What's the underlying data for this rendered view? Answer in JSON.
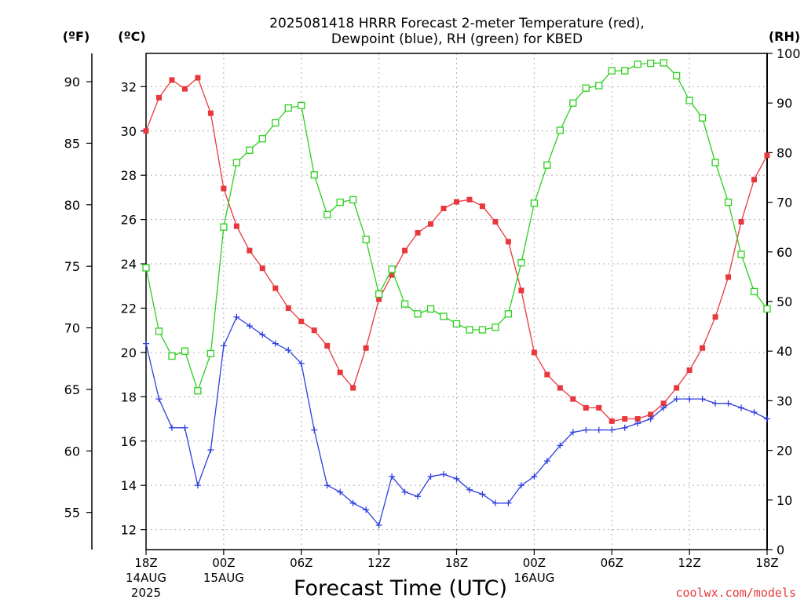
{
  "chart_data": {
    "type": "line",
    "title_line1": "2025081418 HRRR Forecast 2-meter Temperature (red),",
    "title_line2": "Dewpoint (blue), RH (green) for KBED",
    "left_unit_f": "(ºF)",
    "left_unit_c": "(ºC)",
    "right_unit": "(RH)",
    "xlabel": "Forecast Time (UTC)",
    "credit": "coolwx.com/models",
    "x_tick_labels": [
      {
        "hour": 0,
        "label": "18Z",
        "sub1": "14AUG",
        "sub2": "2025"
      },
      {
        "hour": 6,
        "label": "00Z",
        "sub1": "15AUG",
        "sub2": ""
      },
      {
        "hour": 12,
        "label": "06Z",
        "sub1": "",
        "sub2": ""
      },
      {
        "hour": 18,
        "label": "12Z",
        "sub1": "",
        "sub2": ""
      },
      {
        "hour": 24,
        "label": "18Z",
        "sub1": "",
        "sub2": ""
      },
      {
        "hour": 30,
        "label": "00Z",
        "sub1": "16AUG",
        "sub2": ""
      },
      {
        "hour": 36,
        "label": "06Z",
        "sub1": "",
        "sub2": ""
      },
      {
        "hour": 42,
        "label": "12Z",
        "sub1": "",
        "sub2": ""
      },
      {
        "hour": 48,
        "label": "18Z",
        "sub1": "",
        "sub2": ""
      }
    ],
    "xlim_hours": [
      0,
      48
    ],
    "ylim_c": [
      11.1,
      33.5
    ],
    "ylim_rh": [
      0,
      100
    ],
    "yticks_c": [
      12,
      14,
      16,
      18,
      20,
      22,
      24,
      26,
      28,
      30,
      32
    ],
    "yticks_f": [
      55,
      60,
      65,
      70,
      75,
      80,
      85,
      90
    ],
    "yticks_rh": [
      0,
      10,
      20,
      30,
      40,
      50,
      60,
      70,
      80,
      90,
      100
    ],
    "grid": true,
    "colors": {
      "temperature": "#e8383d",
      "dewpoint": "#2f3fe0",
      "rh": "#2ccf1f",
      "grid": "#b0b0b0"
    },
    "series": [
      {
        "name": "Temperature",
        "key": "temperature",
        "unit": "C",
        "marker": "filled-square",
        "values": [
          30.0,
          31.5,
          32.3,
          31.9,
          32.4,
          30.8,
          27.4,
          25.7,
          24.6,
          23.8,
          22.9,
          22.0,
          21.4,
          21.0,
          20.3,
          19.1,
          18.4,
          20.2,
          22.4,
          23.5,
          24.6,
          25.4,
          25.8,
          26.5,
          26.8,
          26.9,
          26.6,
          25.9,
          25.0,
          22.8,
          20.0,
          19.0,
          18.4,
          17.9,
          17.5,
          17.5,
          16.9,
          17.0,
          17.0,
          17.2,
          17.7,
          18.4,
          19.2,
          20.2,
          21.6,
          23.4,
          25.9,
          27.8,
          28.9
        ]
      },
      {
        "name": "Dewpoint",
        "key": "dewpoint",
        "unit": "C",
        "marker": "plus",
        "values": [
          20.4,
          17.9,
          16.6,
          16.6,
          14.0,
          15.6,
          20.3,
          21.6,
          21.2,
          20.8,
          20.4,
          20.1,
          19.5,
          16.5,
          14.0,
          13.7,
          13.2,
          12.9,
          12.2,
          14.4,
          13.7,
          13.5,
          14.4,
          14.5,
          14.3,
          13.8,
          13.6,
          13.2,
          13.2,
          14.0,
          14.4,
          15.1,
          15.8,
          16.4,
          16.5,
          16.5,
          16.5,
          16.6,
          16.8,
          17.0,
          17.5,
          17.9,
          17.9,
          17.9,
          17.7,
          17.7,
          17.5,
          17.3,
          17.0
        ]
      },
      {
        "name": "RH",
        "key": "rh",
        "unit": "%",
        "marker": "open-square",
        "values": [
          56.8,
          44.0,
          39.0,
          40.0,
          32.0,
          39.5,
          65.0,
          78.0,
          80.5,
          82.8,
          86.0,
          89.0,
          89.5,
          75.5,
          67.5,
          70.0,
          70.5,
          62.5,
          51.5,
          56.5,
          49.5,
          47.5,
          48.5,
          47.0,
          45.5,
          44.3,
          44.3,
          44.8,
          47.5,
          57.8,
          69.8,
          77.5,
          84.5,
          90.0,
          93.0,
          93.5,
          96.5,
          96.5,
          97.8,
          98.0,
          98.1,
          95.5,
          90.5,
          87.0,
          78.0,
          70.0,
          59.5,
          52.0,
          48.5
        ]
      }
    ]
  }
}
